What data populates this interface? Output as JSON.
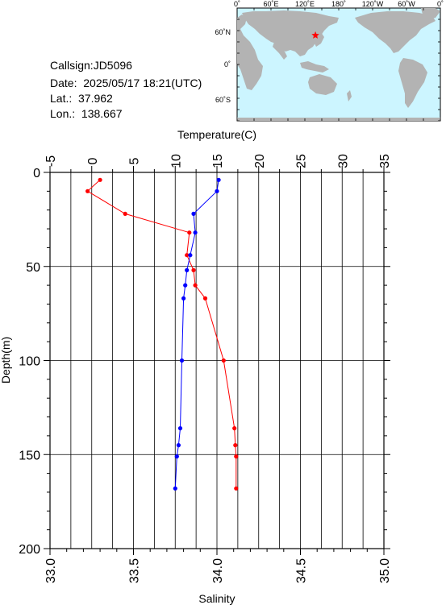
{
  "station": {
    "callsign": "Callsign:JD5096",
    "date": "Date:  2025/05/17 18:21(UTC)",
    "lat": "Lat.:  37.962",
    "lon": "Lon.:  138.667"
  },
  "map": {
    "top_labels": [
      "0˚",
      "60˚E",
      "120˚E",
      "180˚",
      "120˚W",
      "60˚W",
      "0˚"
    ],
    "left_labels": [
      "60˚N",
      "0˚",
      "60˚S"
    ],
    "ocean_color": "#ccf5ff",
    "land_color": "#b3b3b3",
    "marker_color": "#ff0000",
    "marker_icon": "star-icon",
    "marker_lon": 138.667,
    "marker_lat": 37.962
  },
  "chart_data": {
    "type": "line",
    "title": "",
    "ylabel": "Depth(m)",
    "y_reversed": true,
    "ylim": [
      0,
      200
    ],
    "y_ticks": [
      0,
      50,
      100,
      150,
      200
    ],
    "top_axis": {
      "label": "Temperature(C)",
      "lim": [
        -5,
        35
      ],
      "ticks": [
        -5,
        0,
        5,
        10,
        15,
        20,
        25,
        30,
        35
      ]
    },
    "bottom_axis": {
      "label": "Salinity",
      "lim": [
        33.0,
        35.0
      ],
      "ticks": [
        "33.0",
        "33.5",
        "34.0",
        "34.5",
        "35.0"
      ]
    },
    "grid": true,
    "series": [
      {
        "kind": "temperature",
        "axis": "top",
        "color": "#ff0000",
        "depth": [
          4,
          10,
          22,
          32,
          44,
          52,
          60,
          67,
          100,
          136,
          145,
          151,
          168
        ],
        "values": [
          1.0,
          -0.5,
          4.0,
          11.7,
          11.4,
          12.2,
          12.4,
          13.6,
          15.8,
          17.1,
          17.2,
          17.3,
          17.3
        ]
      },
      {
        "kind": "salinity",
        "axis": "bottom",
        "color": "#0000ff",
        "depth": [
          4,
          10,
          22,
          32,
          44,
          52,
          60,
          67,
          100,
          136,
          145,
          151,
          168
        ],
        "values": [
          34.01,
          34.0,
          33.86,
          33.87,
          33.84,
          33.82,
          33.81,
          33.8,
          33.79,
          33.78,
          33.77,
          33.76,
          33.75
        ]
      }
    ]
  }
}
